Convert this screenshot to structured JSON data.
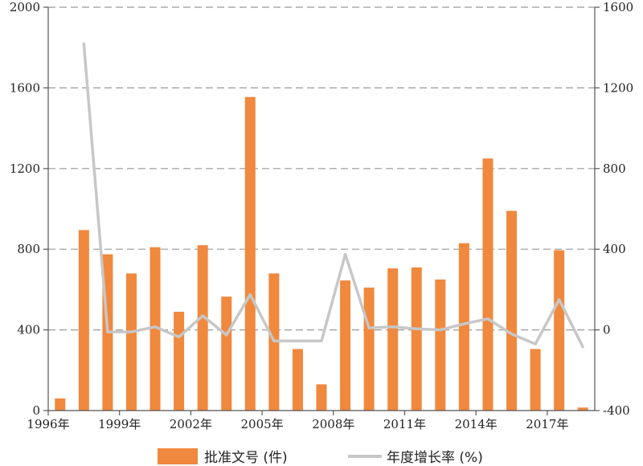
{
  "chart_data": {
    "type": "bar",
    "categories": [
      "1996年",
      "1997年",
      "1998年",
      "1999年",
      "2000年",
      "2001年",
      "2002年",
      "2003年",
      "2004年",
      "2005年",
      "2006年",
      "2007年",
      "2008年",
      "2009年",
      "2010年",
      "2011年",
      "2012年",
      "2013年",
      "2014年",
      "2015年",
      "2016年",
      "2017年",
      "2018年"
    ],
    "x_tick_labels": [
      "1996年",
      "1999年",
      "2002年",
      "2005年",
      "2008年",
      "2011年",
      "2014年",
      "2017年"
    ],
    "series": [
      {
        "name": "批准文号 (件)",
        "axis": "left",
        "type": "bar",
        "color": "#f0883e",
        "values": [
          60,
          895,
          775,
          680,
          810,
          490,
          820,
          565,
          1555,
          680,
          305,
          130,
          645,
          610,
          705,
          710,
          650,
          830,
          1250,
          990,
          305,
          795,
          15
        ]
      },
      {
        "name": "年度增长率 (%)",
        "axis": "right",
        "type": "line",
        "color": "#c7c7c7",
        "values": [
          null,
          1420,
          -10,
          -10,
          15,
          -35,
          70,
          -25,
          175,
          -55,
          -55,
          -55,
          375,
          10,
          15,
          5,
          0,
          30,
          55,
          -20,
          -70,
          150,
          -85
        ]
      }
    ],
    "y_left": {
      "min": 0,
      "max": 2000,
      "ticks": [
        0,
        400,
        800,
        1200,
        1600,
        2000
      ]
    },
    "y_right": {
      "min": -400,
      "max": 1600,
      "ticks": [
        -400,
        0,
        400,
        800,
        1200,
        1600
      ]
    },
    "grid": "horizontal-dashed",
    "legend_position": "bottom"
  }
}
